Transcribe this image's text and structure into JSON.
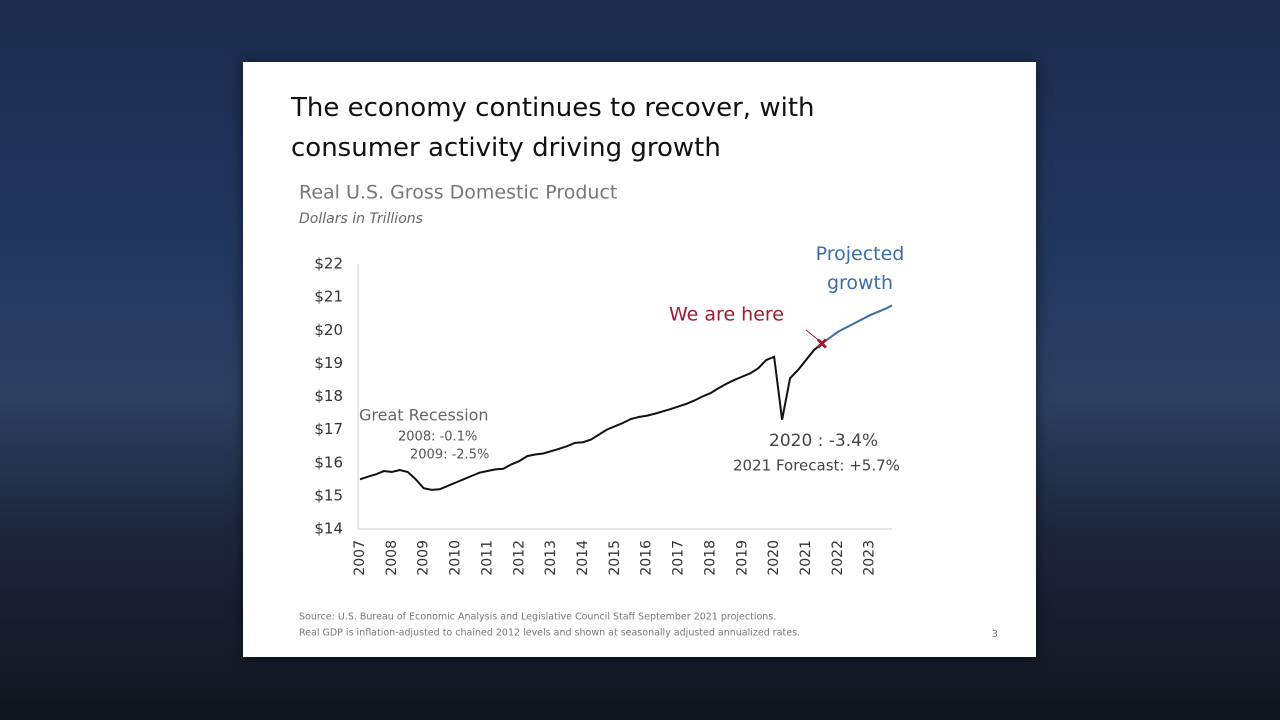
{
  "slide_title": "The economy continues to recover, with consumer activity driving growth",
  "page_number": "3",
  "source_notes": [
    "Source: U.S. Bureau of Economic Analysis and Legislative Council Staff September 2021 projections.",
    "Real GDP is inflation-adjusted to chained 2012 levels and shown at seasonally adjusted annualized rates."
  ],
  "chart_data": {
    "type": "line",
    "title": "Real U.S. Gross Domestic Product",
    "subtitle": "Dollars in Trillions",
    "xlim": [
      2007,
      2023.7
    ],
    "xticks": [
      2007,
      2008,
      2009,
      2010,
      2011,
      2012,
      2013,
      2014,
      2015,
      2016,
      2017,
      2018,
      2019,
      2020,
      2021,
      2022,
      2023
    ],
    "ylim": [
      14,
      22
    ],
    "yticks": [
      {
        "value": 14,
        "label": "$14"
      },
      {
        "value": 15,
        "label": "$15"
      },
      {
        "value": 16,
        "label": "$16"
      },
      {
        "value": 17,
        "label": "$17"
      },
      {
        "value": 18,
        "label": "$18"
      },
      {
        "value": 19,
        "label": "$19"
      },
      {
        "value": 20,
        "label": "$20"
      },
      {
        "value": 21,
        "label": "$21"
      },
      {
        "value": 22,
        "label": "$22"
      }
    ],
    "series": [
      {
        "color": "#111111",
        "x": [
          2007,
          2007.25,
          2007.5,
          2007.75,
          2008,
          2008.25,
          2008.5,
          2008.75,
          2009,
          2009.25,
          2009.5,
          2009.75,
          2010,
          2010.25,
          2010.5,
          2010.75,
          2011,
          2011.25,
          2011.5,
          2011.75,
          2012,
          2012.25,
          2012.5,
          2012.75,
          2013,
          2013.25,
          2013.5,
          2013.75,
          2014,
          2014.25,
          2014.5,
          2014.75,
          2015,
          2015.25,
          2015.5,
          2015.75,
          2016,
          2016.25,
          2016.5,
          2016.75,
          2017,
          2017.25,
          2017.5,
          2017.75,
          2018,
          2018.25,
          2018.5,
          2018.75,
          2019,
          2019.25,
          2019.5,
          2019.75,
          2020,
          2020.25,
          2020.5,
          2020.75,
          2021,
          2021.25,
          2021.5
        ],
        "values": [
          15.5,
          15.58,
          15.65,
          15.75,
          15.72,
          15.78,
          15.72,
          15.5,
          15.23,
          15.18,
          15.2,
          15.3,
          15.4,
          15.5,
          15.6,
          15.7,
          15.75,
          15.8,
          15.82,
          15.95,
          16.05,
          16.2,
          16.25,
          16.28,
          16.35,
          16.42,
          16.5,
          16.6,
          16.62,
          16.7,
          16.85,
          17.0,
          17.1,
          17.2,
          17.32,
          17.38,
          17.42,
          17.48,
          17.55,
          17.62,
          17.7,
          17.78,
          17.88,
          18.0,
          18.1,
          18.25,
          18.38,
          18.5,
          18.6,
          18.7,
          18.85,
          19.1,
          19.2,
          17.3,
          18.55,
          18.8,
          19.1,
          19.4,
          19.6
        ]
      },
      {
        "name": "Projected growth",
        "color": "#3a6ea5",
        "x": [
          2021.5,
          2022,
          2022.5,
          2023,
          2023.5,
          2023.7
        ],
        "values": [
          19.6,
          19.95,
          20.2,
          20.45,
          20.65,
          20.75
        ]
      }
    ],
    "annotations": [
      "Great Recession",
      "2008: -0.1%",
      "2009: -2.5%",
      "2020 : -3.4%",
      "2021 Forecast:  +5.7%",
      "We are here"
    ]
  }
}
